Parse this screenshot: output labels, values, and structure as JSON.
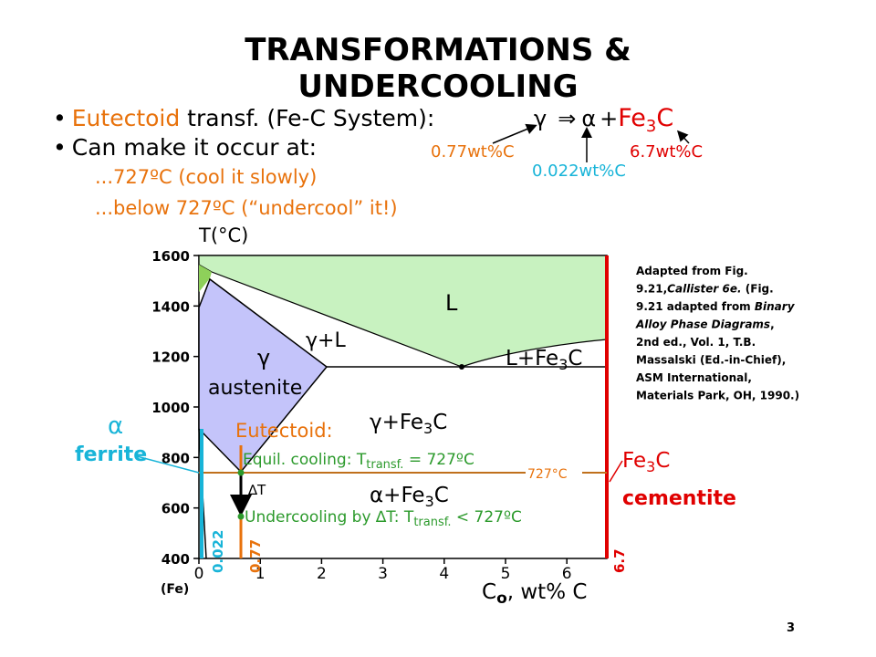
{
  "title": [
    "TRANSFORMATIONS &",
    "UNDERCOOLING"
  ],
  "bullets": [
    {
      "bullet": "•",
      "highlight": "Eutectoid",
      "rest": " transf. (Fe-C System):"
    },
    {
      "bullet": "•",
      "text": "Can make it occur at:"
    }
  ],
  "sub_bullets": [
    "...727ºC (cool it slowly)",
    "...below 727ºC (“undercool” it!)"
  ],
  "reaction": {
    "reactant": "γ",
    "arrow": "⇒",
    "product1": "α",
    "plus": "+",
    "product2": "Fe",
    "product2_sub": "3",
    "product2_end": "C",
    "labels": [
      "0.77wt%C",
      "6.7wt%C",
      "0.022wt%C"
    ]
  },
  "diagram": {
    "y_axis_label": "T(°C)",
    "yticks": [
      400,
      600,
      800,
      1000,
      1200,
      1400,
      1600
    ],
    "xticks": [
      0,
      1,
      2,
      3,
      4,
      5,
      6
    ],
    "x_origin_label": "(Fe)",
    "x_axis_label": {
      "main": "C",
      "sub": "o",
      "rest": ", wt% C"
    },
    "regions": {
      "liquid": "L",
      "gamma_liquid": [
        "γ",
        "+L"
      ],
      "gamma": "γ",
      "austenite": "austenite",
      "liquid_fe3c": [
        "L+Fe",
        "3",
        "C"
      ],
      "gamma_fe3c": [
        "γ",
        "+Fe",
        "3",
        "C"
      ],
      "alpha_fe3c": [
        "α",
        "+Fe",
        "3",
        "C"
      ]
    },
    "eutectoid": "Eutectoid:",
    "equil": [
      "Equil. cooling: T",
      "transf.",
      " = 727ºC"
    ],
    "delta_t": "∆T",
    "undercooling": [
      "Undercooling by ∆T: T",
      "transf.",
      " < 727ºC"
    ],
    "eutectoid_line_label": "727°C",
    "ferrite": {
      "symbol": "α",
      "name": "ferrite"
    },
    "cementite": {
      "formula": [
        "Fe",
        "3",
        "C"
      ],
      "name": "cementite"
    },
    "composition_marks": [
      "0.022",
      "0.77",
      "6.7"
    ]
  },
  "caption": [
    [
      "Adapted from Fig."
    ],
    [
      "9.21,",
      "Callister 6e.",
      " (Fig."
    ],
    [
      "9.21 adapted from ",
      "Binary"
    ],
    [
      "Alloy Phase Diagrams",
      ","
    ],
    [
      "2nd ed., Vol. 1, T.B."
    ],
    [
      "Massalski (Ed.-in-Chief),"
    ],
    [
      "ASM International,"
    ],
    [
      "Materials Park, OH, 1990.)"
    ]
  ],
  "page_number": "3"
}
